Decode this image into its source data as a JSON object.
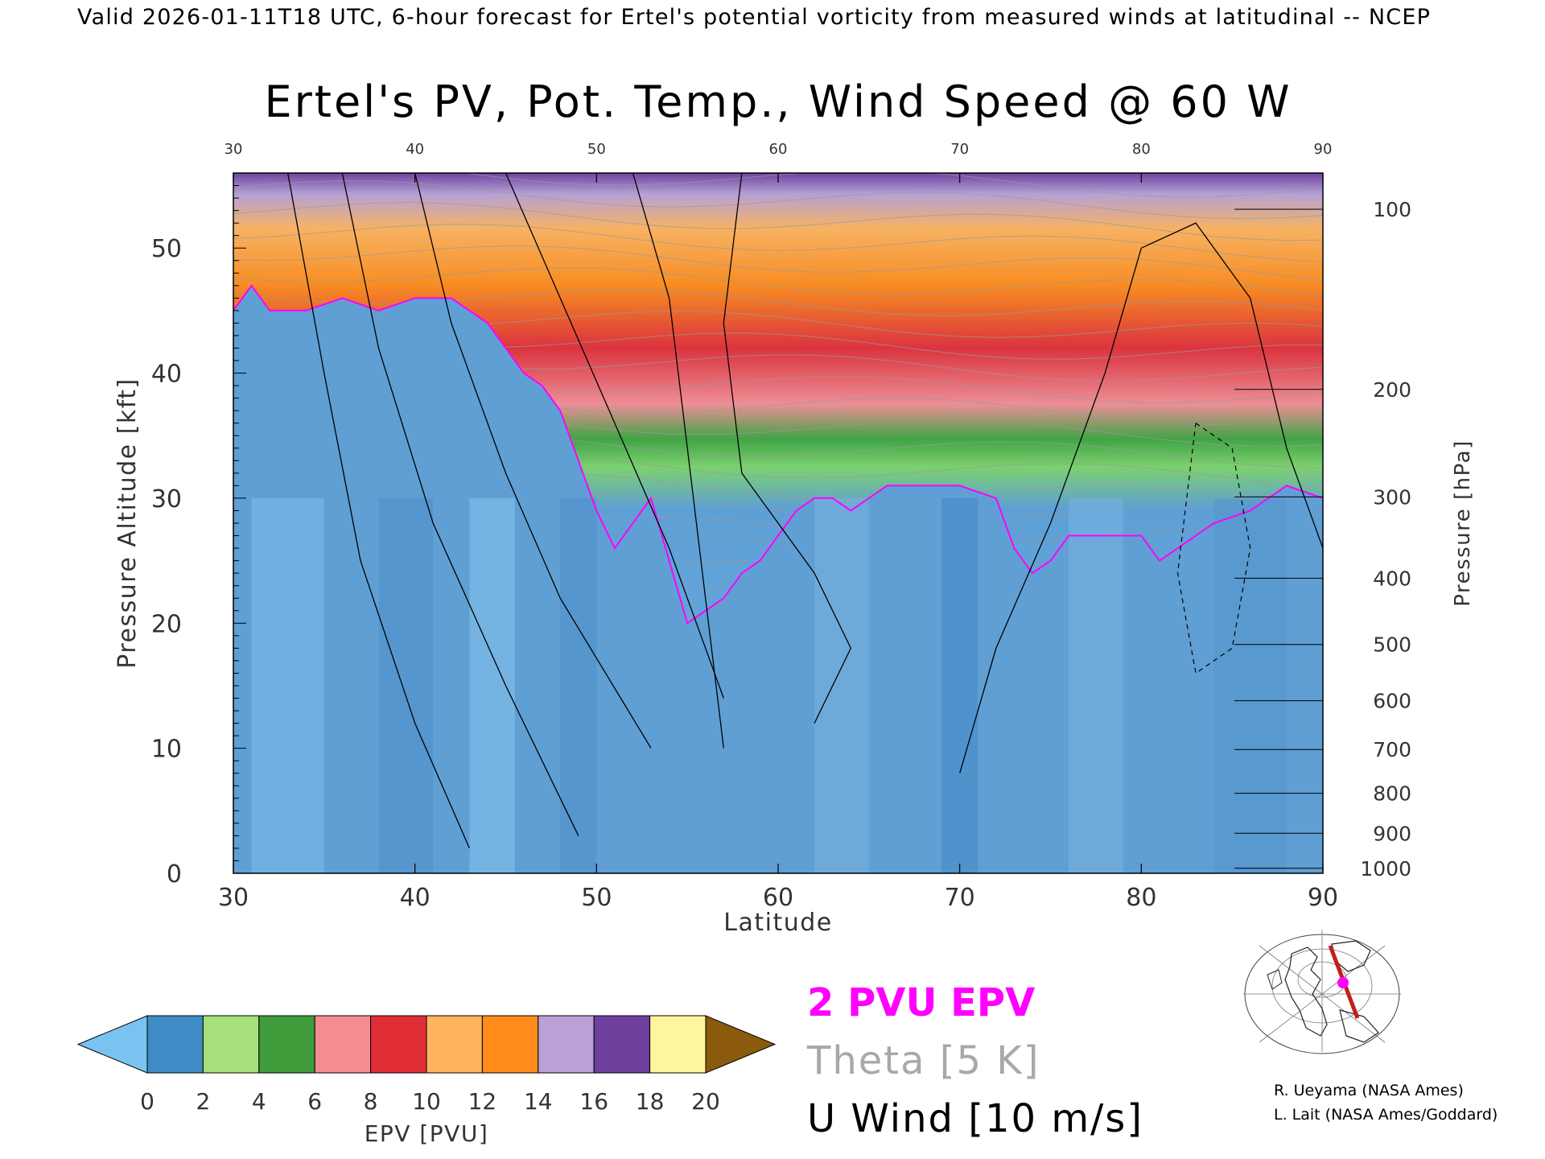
{
  "header": {
    "subtitle": "Valid 2026-01-11T18 UTC, 6-hour forecast for Ertel's potential vorticity from measured winds at latitudinal -- NCEP",
    "title": "Ertel's PV, Pot. Temp., Wind Speed @ 60 W"
  },
  "chart_data": {
    "type": "heatmap",
    "title": "Ertel's PV, Pot. Temp., Wind Speed @ 60 W",
    "xlabel": "Latitude",
    "ylabel": "Pressure Altitude [kft]",
    "y2label": "Pressure [hPa]",
    "xlim": [
      30,
      90
    ],
    "ylim": [
      0,
      56
    ],
    "x_ticks": [
      30,
      40,
      50,
      60,
      70,
      80,
      90
    ],
    "y_ticks": [
      0,
      10,
      20,
      30,
      40,
      50
    ],
    "pressure_ticks": [
      {
        "label": "100",
        "kft": 53.1
      },
      {
        "label": "200",
        "kft": 38.7
      },
      {
        "label": "300",
        "kft": 30.1
      },
      {
        "label": "400",
        "kft": 23.6
      },
      {
        "label": "500",
        "kft": 18.3
      },
      {
        "label": "600",
        "kft": 13.8
      },
      {
        "label": "700",
        "kft": 9.9
      },
      {
        "label": "800",
        "kft": 6.4
      },
      {
        "label": "900",
        "kft": 3.2
      },
      {
        "label": "1000",
        "kft": 0.4
      }
    ],
    "colorbar": {
      "label": "EPV [PVU]",
      "ticks": [
        "0",
        "2",
        "4",
        "6",
        "8",
        "10",
        "12",
        "14",
        "16",
        "18",
        "20"
      ],
      "colors": [
        "#79c3f0",
        "#3f8bc6",
        "#a6e07a",
        "#3e9c3a",
        "#f48d92",
        "#e12e36",
        "#ffb35c",
        "#ff8c1a",
        "#b9a1d6",
        "#6f3f9e",
        "#fff5a0",
        "#8b5a0c"
      ]
    },
    "tropopause_2pvu_kft": [
      [
        30,
        45
      ],
      [
        31,
        47
      ],
      [
        32,
        45
      ],
      [
        34,
        45
      ],
      [
        36,
        46
      ],
      [
        38,
        45
      ],
      [
        40,
        46
      ],
      [
        42,
        46
      ],
      [
        44,
        44
      ],
      [
        45,
        42
      ],
      [
        46,
        40
      ],
      [
        47,
        39
      ],
      [
        48,
        37
      ],
      [
        49,
        33
      ],
      [
        50,
        29
      ],
      [
        51,
        26
      ],
      [
        52,
        28
      ],
      [
        53,
        30
      ],
      [
        54,
        25
      ],
      [
        55,
        20
      ],
      [
        56,
        21
      ],
      [
        57,
        22
      ],
      [
        58,
        24
      ],
      [
        59,
        25
      ],
      [
        60,
        27
      ],
      [
        61,
        29
      ],
      [
        62,
        30
      ],
      [
        63,
        30
      ],
      [
        64,
        29
      ],
      [
        65,
        30
      ],
      [
        66,
        31
      ],
      [
        68,
        31
      ],
      [
        70,
        31
      ],
      [
        72,
        30
      ],
      [
        73,
        26
      ],
      [
        74,
        24
      ],
      [
        75,
        25
      ],
      [
        76,
        27
      ],
      [
        78,
        27
      ],
      [
        80,
        27
      ],
      [
        81,
        25
      ],
      [
        82,
        26
      ],
      [
        84,
        28
      ],
      [
        86,
        29
      ],
      [
        88,
        31
      ],
      [
        90,
        30
      ]
    ],
    "wind_contours_mps": [
      "0",
      "10",
      "30",
      "50",
      "70"
    ],
    "theta_interval": "5 K",
    "wind_interval": "10 m/s"
  },
  "colorbar_title": "EPV [PVU]",
  "legend": {
    "pv": "2 PVU EPV",
    "theta": "Theta [5 K]",
    "wind": "U Wind [10 m/s]"
  },
  "credits": {
    "line1": "R. Ueyama (NASA Ames)",
    "line2": "L. Lait (NASA Ames/Goddard)"
  },
  "map_inset": {
    "icon": "globe-map-icon",
    "track_color": "#c0201a",
    "marker_color": "#ff00ff"
  }
}
